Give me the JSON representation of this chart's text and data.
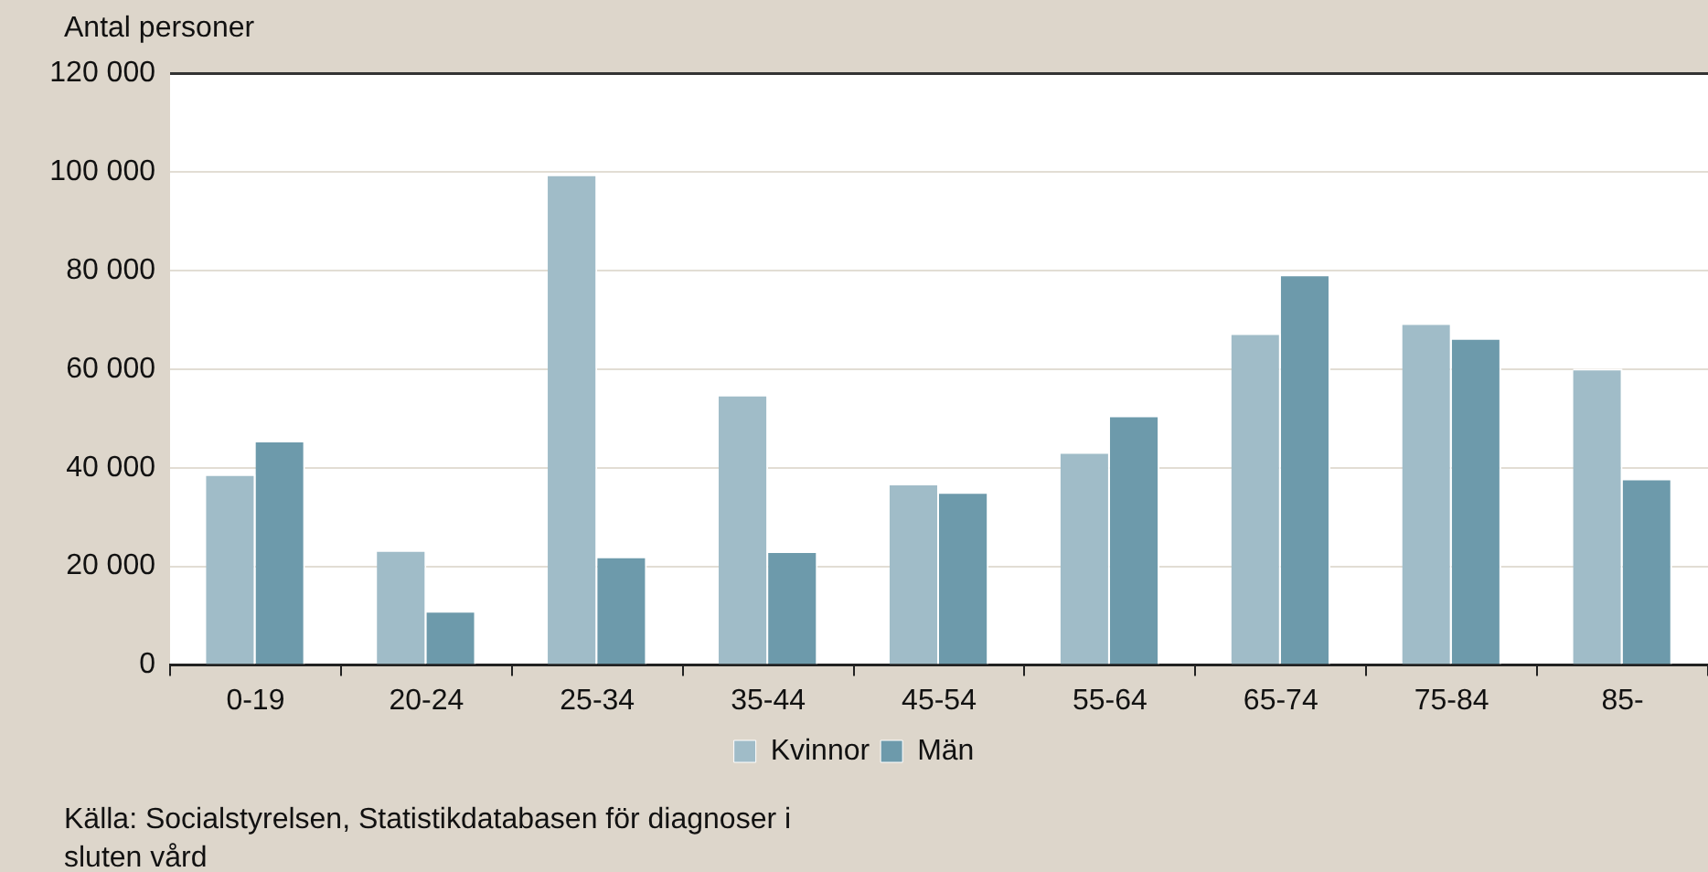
{
  "chart_data": {
    "type": "bar",
    "ylabel": "Antal personer",
    "categories": [
      "0-19",
      "20-24",
      "25-34",
      "35-44",
      "45-54",
      "55-64",
      "65-74",
      "75-84",
      "85-"
    ],
    "series": [
      {
        "name": "Kvinnor",
        "color": "#a0bcc8",
        "values": [
          38700,
          23300,
          99500,
          54800,
          36800,
          43200,
          67300,
          69300,
          60100
        ]
      },
      {
        "name": "Män",
        "color": "#6d9aab",
        "values": [
          45500,
          11000,
          22000,
          23100,
          35100,
          50600,
          79200,
          66300,
          37800
        ]
      }
    ],
    "ylim": [
      0,
      120000
    ],
    "yticks": [
      {
        "value": 0,
        "label": "0"
      },
      {
        "value": 20000,
        "label": "20 000"
      },
      {
        "value": 40000,
        "label": "40 000"
      },
      {
        "value": 60000,
        "label": "60 000"
      },
      {
        "value": 80000,
        "label": "80 000"
      },
      {
        "value": 100000,
        "label": "100 000"
      },
      {
        "value": 120000,
        "label": "120 000"
      }
    ],
    "grid": "y",
    "legend": "bottom",
    "annotations": [
      "Källa: Socialstyrelsen, Statistikdatabasen för diagnoser i sluten vård"
    ]
  }
}
